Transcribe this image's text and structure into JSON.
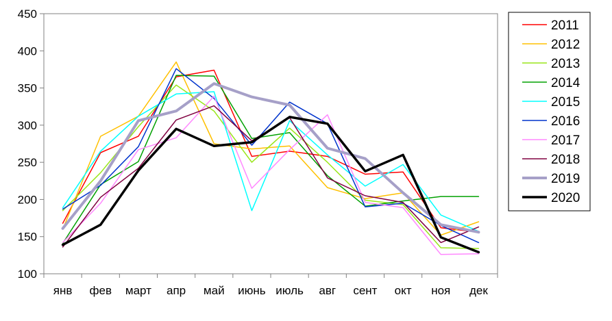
{
  "chart_data": {
    "type": "line",
    "categories": [
      "янв",
      "фев",
      "март",
      "апр",
      "май",
      "июнь",
      "июль",
      "авг",
      "сент",
      "окт",
      "ноя",
      "дек"
    ],
    "ylim": [
      100,
      450
    ],
    "yticks": [
      100,
      150,
      200,
      250,
      300,
      350,
      400,
      450
    ],
    "grid": false,
    "legend_position": "right",
    "series": [
      {
        "name": "2011",
        "color": "#FF0000",
        "width": 1.5,
        "values": [
          168,
          263,
          285,
          365,
          374,
          258,
          265,
          258,
          234,
          237,
          162,
          156
        ]
      },
      {
        "name": "2012",
        "color": "#FFC000",
        "width": 1.5,
        "values": [
          160,
          285,
          312,
          385,
          275,
          268,
          272,
          216,
          201,
          209,
          152,
          170
        ]
      },
      {
        "name": "2013",
        "color": "#99E619",
        "width": 1.5,
        "values": [
          185,
          236,
          298,
          354,
          319,
          250,
          296,
          250,
          199,
          193,
          135,
          134
        ]
      },
      {
        "name": "2014",
        "color": "#00A000",
        "width": 1.5,
        "values": [
          141,
          220,
          251,
          367,
          366,
          282,
          290,
          232,
          191,
          198,
          204,
          204
        ]
      },
      {
        "name": "2015",
        "color": "#00FFFF",
        "width": 1.5,
        "values": [
          189,
          265,
          312,
          342,
          345,
          185,
          306,
          260,
          218,
          247,
          179,
          157
        ]
      },
      {
        "name": "2016",
        "color": "#0033CC",
        "width": 1.5,
        "values": [
          187,
          219,
          271,
          376,
          336,
          273,
          331,
          302,
          190,
          195,
          165,
          142
        ]
      },
      {
        "name": "2017",
        "color": "#FF88FF",
        "width": 1.5,
        "values": [
          142,
          195,
          267,
          283,
          339,
          215,
          267,
          314,
          196,
          189,
          126,
          127
        ]
      },
      {
        "name": "2018",
        "color": "#800040",
        "width": 1.5,
        "values": [
          136,
          203,
          242,
          307,
          326,
          279,
          310,
          229,
          205,
          196,
          142,
          163
        ]
      },
      {
        "name": "2019",
        "color": "#A6A0C8",
        "width": 4,
        "values": [
          161,
          225,
          306,
          319,
          356,
          338,
          327,
          269,
          255,
          209,
          166,
          156
        ]
      },
      {
        "name": "2020",
        "color": "#000000",
        "width": 3.5,
        "values": [
          139,
          166,
          239,
          295,
          272,
          277,
          311,
          302,
          238,
          260,
          149,
          129
        ]
      }
    ]
  }
}
